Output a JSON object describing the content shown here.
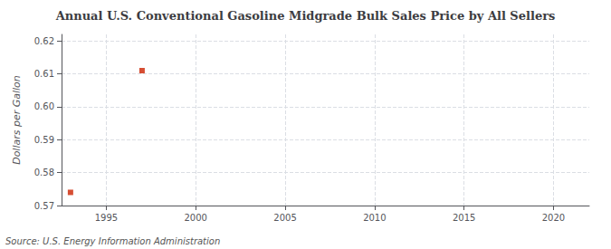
{
  "chart_data": {
    "type": "scatter",
    "title": "Annual U.S. Conventional Gasoline Midgrade Bulk Sales Price by All Sellers",
    "ylabel": "Dollars per Gallon",
    "annotations": [
      "Source: U.S. Energy Information Administration"
    ],
    "x": [
      1993,
      1997
    ],
    "values": [
      0.574,
      0.611
    ],
    "color": "#cc2200",
    "marker": "square",
    "xlim": [
      1992.5,
      2022
    ],
    "ylim": [
      0.57,
      0.622
    ],
    "xticks": [
      1995,
      2000,
      2005,
      2010,
      2015,
      2020
    ],
    "yticks": [
      0.57,
      0.58,
      0.59,
      {
        "value": 0.6,
        "label": "0.60"
      },
      0.61,
      0.62
    ],
    "grid": true
  }
}
